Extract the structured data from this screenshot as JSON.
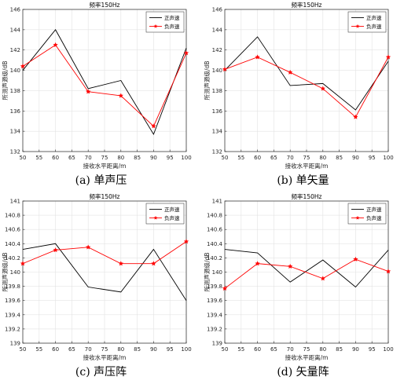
{
  "chart_data": [
    {
      "type": "line",
      "caption": "(a)  单声压",
      "title": "频率150Hz",
      "xlabel": "接收水平距离/m",
      "ylabel": "所测声源级/dB",
      "x": [
        50,
        60,
        70,
        80,
        90,
        100
      ],
      "xticks": [
        "50",
        "55",
        "60",
        "65",
        "70",
        "75",
        "80",
        "85",
        "90",
        "95",
        "100"
      ],
      "xlim": [
        50,
        100
      ],
      "ylim": [
        132,
        146
      ],
      "yticks": [
        "132",
        "134",
        "136",
        "138",
        "140",
        "142",
        "144",
        "146"
      ],
      "grid": true,
      "legend_position": "top-right",
      "series": [
        {
          "name": "正声速",
          "color": "#000000",
          "marker": "none",
          "values": [
            140.0,
            144.0,
            138.2,
            139.0,
            133.7,
            142.2
          ]
        },
        {
          "name": "负声速",
          "color": "#ff0000",
          "marker": "star",
          "values": [
            140.4,
            142.5,
            137.9,
            137.5,
            134.5,
            141.7
          ]
        }
      ]
    },
    {
      "type": "line",
      "caption": "(b)  单矢量",
      "title": "频率150Hz",
      "xlabel": "接收水平距离/m",
      "ylabel": "所测声源级/dB",
      "x": [
        50,
        60,
        70,
        80,
        90,
        100
      ],
      "xticks": [
        "50",
        "55",
        "60",
        "65",
        "70",
        "75",
        "80",
        "85",
        "90",
        "95",
        "100"
      ],
      "xlim": [
        50,
        100
      ],
      "ylim": [
        132,
        146
      ],
      "yticks": [
        "132",
        "134",
        "136",
        "138",
        "140",
        "142",
        "144",
        "146"
      ],
      "grid": true,
      "legend_position": "top-right",
      "series": [
        {
          "name": "正声速",
          "color": "#000000",
          "marker": "none",
          "values": [
            140.0,
            143.3,
            138.5,
            138.7,
            136.1,
            140.9
          ]
        },
        {
          "name": "负声速",
          "color": "#ff0000",
          "marker": "star",
          "values": [
            140.1,
            141.3,
            139.8,
            138.2,
            135.4,
            141.3
          ]
        }
      ]
    },
    {
      "type": "line",
      "caption": "(c)  声压阵",
      "title": "频率150Hz",
      "xlabel": "接收水平距离/m",
      "ylabel": "所测声源级/dB",
      "x": [
        50,
        60,
        70,
        80,
        90,
        100
      ],
      "xticks": [
        "50",
        "55",
        "60",
        "65",
        "70",
        "75",
        "80",
        "85",
        "90",
        "95",
        "100"
      ],
      "xlim": [
        50,
        100
      ],
      "ylim": [
        139,
        141
      ],
      "yticks": [
        "139",
        "139.2",
        "139.4",
        "139.6",
        "139.8",
        "140",
        "140.2",
        "140.4",
        "140.6",
        "140.8",
        "141"
      ],
      "grid": true,
      "legend_position": "top-right",
      "series": [
        {
          "name": "正声速",
          "color": "#000000",
          "marker": "none",
          "values": [
            140.32,
            140.4,
            139.79,
            139.72,
            140.32,
            139.6
          ]
        },
        {
          "name": "负声速",
          "color": "#ff0000",
          "marker": "star",
          "values": [
            140.12,
            140.31,
            140.35,
            140.12,
            140.12,
            140.43
          ]
        }
      ]
    },
    {
      "type": "line",
      "caption": "(d)  矢量阵",
      "title": "频率150Hz",
      "xlabel": "接收水平距离/m",
      "ylabel": "所测声源级/dB",
      "x": [
        50,
        60,
        70,
        80,
        90,
        100
      ],
      "xticks": [
        "50",
        "55",
        "60",
        "65",
        "70",
        "75",
        "80",
        "85",
        "90",
        "95",
        "100"
      ],
      "xlim": [
        50,
        100
      ],
      "ylim": [
        139,
        141
      ],
      "yticks": [
        "139",
        "139.2",
        "139.4",
        "139.6",
        "139.8",
        "140",
        "140.2",
        "140.4",
        "140.6",
        "140.8",
        "141"
      ],
      "grid": true,
      "legend_position": "top-right",
      "series": [
        {
          "name": "正声速",
          "color": "#000000",
          "marker": "none",
          "values": [
            140.32,
            140.27,
            139.86,
            140.17,
            139.79,
            140.31
          ]
        },
        {
          "name": "负声速",
          "color": "#ff0000",
          "marker": "star",
          "values": [
            139.77,
            140.12,
            140.08,
            139.91,
            140.18,
            140.01
          ]
        }
      ]
    }
  ]
}
